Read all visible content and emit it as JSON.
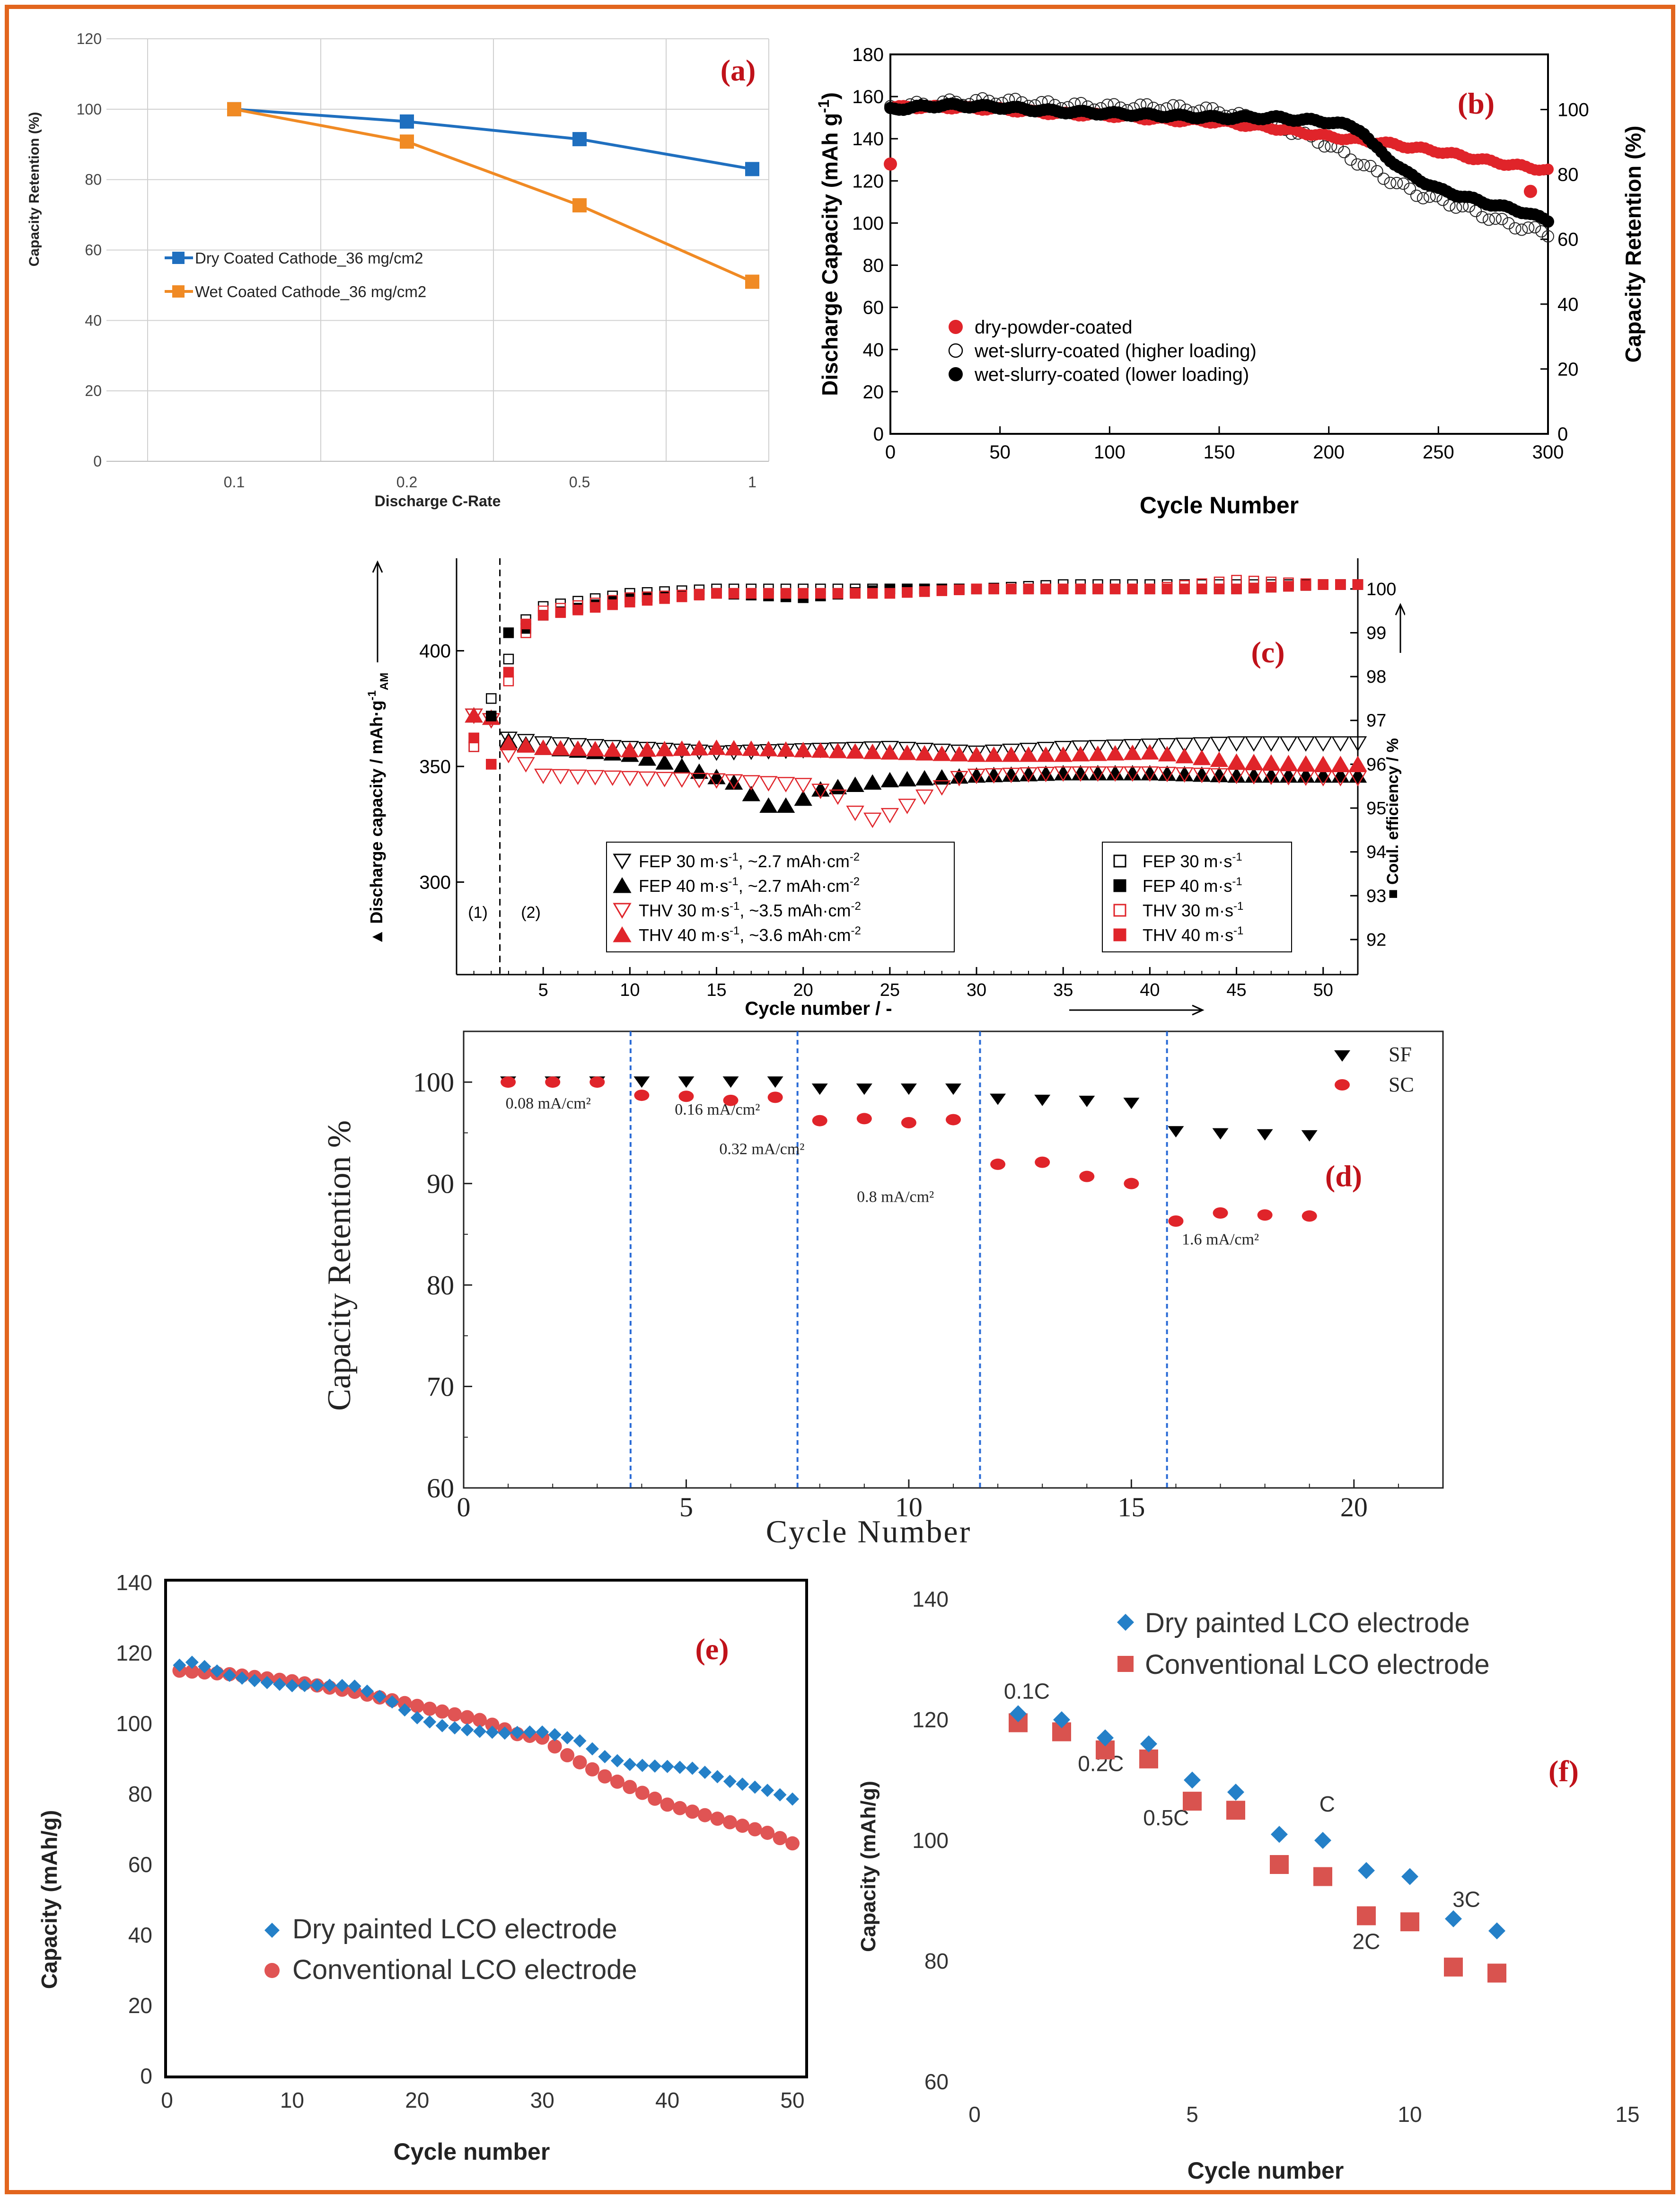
{
  "colors": {
    "border": "#e2651d",
    "blue": "#1f6fbf",
    "orange": "#f08a24",
    "red": "#e0242a",
    "black": "#000000",
    "panel_label": "#c0121a",
    "divider": "#2a6bd6",
    "diamond": "#2480c8",
    "salmon": "#e05454",
    "square_red": "#d9534f"
  },
  "chart_data": [
    {
      "id": "a",
      "type": "line",
      "panel_label": "(a)",
      "xlabel": "Discharge C-Rate",
      "ylabel": "Capacity Retention (%)",
      "categories": [
        "0.1",
        "0.2",
        "0.5",
        "1"
      ],
      "ylim": [
        0,
        120
      ],
      "yticks": [
        "0",
        "20",
        "40",
        "60",
        "80",
        "100",
        "120"
      ],
      "grid": true,
      "series": [
        {
          "name": "Dry Coated Cathode_36 mg/cm2",
          "values": [
            100,
            96.5,
            91.5,
            83.0
          ]
        },
        {
          "name": "Wet Coated Cathode_36 mg/cm2",
          "values": [
            100,
            90.8,
            72.7,
            51.0
          ]
        }
      ]
    },
    {
      "id": "b",
      "type": "scatter",
      "panel_label": "(b)",
      "xlabel": "Cycle Number",
      "ylabel": "Discharge Capacity (mAh g-1)",
      "ylabel_main": "Discharge Capacity (mAh g",
      "ylabel_sup": "-1",
      "ylabel_end": ")",
      "y2label": "Capacity Retention (%)",
      "xlim": [
        0,
        300
      ],
      "ylim": [
        0,
        180
      ],
      "y2lim": [
        0,
        117
      ],
      "xticks": [
        "0",
        "50",
        "100",
        "150",
        "200",
        "250",
        "300"
      ],
      "yticks": [
        "0",
        "20",
        "40",
        "60",
        "80",
        "100",
        "120",
        "140",
        "160",
        "180"
      ],
      "y2ticks": [
        "0",
        "20",
        "40",
        "60",
        "80",
        "100"
      ],
      "series": [
        {
          "name": "dry-powder-coated",
          "x": [
            0,
            25,
            50,
            75,
            100,
            125,
            150,
            175,
            200,
            225,
            250,
            275,
            300
          ],
          "values": [
            155,
            155,
            154,
            152,
            151,
            149,
            148,
            145,
            141,
            138,
            134,
            129,
            125
          ],
          "extra_points": [
            [
              0,
              128
            ],
            [
              292,
              115
            ]
          ]
        },
        {
          "name": "wet-slurry-coated (higher loading)",
          "x": [
            0,
            25,
            50,
            75,
            100,
            125,
            150,
            175,
            200,
            210,
            225,
            240,
            260,
            280,
            300
          ],
          "values": [
            155,
            157,
            158,
            156,
            155,
            155,
            153,
            147,
            137,
            131,
            122,
            114,
            108,
            100,
            95
          ]
        },
        {
          "name": "wet-slurry-coated (lower loading)",
          "x": [
            0,
            25,
            50,
            75,
            100,
            125,
            150,
            175,
            200,
            210,
            215,
            220,
            235,
            250,
            270,
            290,
            300
          ],
          "values": [
            154,
            156,
            155,
            153,
            152,
            151,
            150,
            150,
            148,
            146,
            144,
            137,
            124,
            116,
            110,
            105,
            101
          ]
        }
      ]
    },
    {
      "id": "c",
      "type": "scatter",
      "panel_label": "(c)",
      "xlabel": "Cycle number / -",
      "ylabel_main": "Discharge capacity / mAh·g",
      "ylabel_sub": "AM",
      "ylabel_sup": "-1",
      "ylabel": "Discharge capacity / mAh·g-1AM",
      "y2label": "Coul. efficiency / %",
      "xlim": [
        0,
        52
      ],
      "ylim": [
        260,
        440
      ],
      "y2lim": [
        91.2,
        100.7
      ],
      "xticks": [
        "5",
        "10",
        "15",
        "20",
        "25",
        "30",
        "35",
        "40",
        "45",
        "50"
      ],
      "yticks": [
        "300",
        "350",
        "400"
      ],
      "y2ticks": [
        "92",
        "93",
        "94",
        "95",
        "96",
        "97",
        "98",
        "99",
        "100"
      ],
      "region_labels": [
        "(1)",
        "(2)"
      ],
      "divider_x": 2.5,
      "legend_left_prefix": [
        "FEP 30 m·s",
        "FEP 40 m·s",
        "THV 30 m·s",
        "THV 40 m·s"
      ],
      "legend_left_unit": [
        ", ~2.7 mAh·cm",
        ", ~2.7 mAh·cm",
        ", ~3.5 mAh·cm",
        ", ~3.6 mAh·cm"
      ],
      "legend_right": [
        "FEP 30 m·s",
        "FEP 40 m·s",
        "THV 30 m·s",
        "THV 40 m·s"
      ],
      "sup_neg1": "-1",
      "sup_neg2": "-2",
      "capacity_series": [
        {
          "name": "FEP 30 m·s-1, ~2.7 mAh·cm-2",
          "x": [
            1,
            2,
            3,
            5,
            10,
            15,
            20,
            25,
            30,
            35,
            40,
            45,
            50,
            52
          ],
          "values": [
            372,
            370,
            362,
            360,
            358,
            356,
            357,
            358,
            356,
            358,
            359,
            360,
            360,
            360
          ]
        },
        {
          "name": "FEP 40 m·s-1, ~2.7 mAh·cm-2",
          "x": [
            1,
            2,
            3,
            5,
            10,
            13,
            16,
            18,
            19,
            20,
            21,
            22,
            25,
            30,
            35,
            40,
            45,
            50,
            52
          ],
          "values": [
            372,
            371,
            361,
            358,
            355,
            350,
            343,
            333,
            333,
            336,
            340,
            341,
            344,
            346,
            347,
            347,
            346,
            346,
            346
          ]
        },
        {
          "name": "THV 30 m·s-1, ~3.5 mAh·cm-2",
          "x": [
            1,
            2,
            3,
            4,
            5,
            10,
            15,
            20,
            22,
            23,
            24,
            25,
            27,
            29,
            30,
            35,
            40,
            45,
            50,
            52
          ],
          "values": [
            372,
            370,
            355,
            351,
            346,
            345,
            344,
            342,
            337,
            330,
            327,
            329,
            337,
            345,
            346,
            347,
            347,
            346,
            345,
            345
          ]
        },
        {
          "name": "THV 40 m·s-1, ~3.6 mAh·cm-2",
          "x": [
            1,
            2,
            3,
            5,
            10,
            15,
            20,
            25,
            30,
            35,
            40,
            45,
            50,
            52
          ],
          "values": [
            372,
            371,
            360,
            358,
            357,
            358,
            357,
            356,
            355,
            355,
            356,
            352,
            351,
            351
          ]
        }
      ],
      "efficiency_series": [
        {
          "name": "FEP 30 m·s-1",
          "x": [
            1,
            2,
            3,
            4,
            5,
            10,
            15,
            20,
            25,
            30,
            35,
            40,
            45,
            50,
            52
          ],
          "values": [
            96.4,
            97.5,
            98.4,
            99.3,
            99.6,
            99.9,
            100.0,
            100.0,
            100.0,
            100.0,
            100.1,
            100.1,
            100.1,
            100.1,
            100.1
          ]
        },
        {
          "name": "FEP 40 m·s-1",
          "x": [
            1,
            2,
            3,
            4,
            5,
            10,
            15,
            20,
            25,
            30,
            35,
            40,
            45,
            50,
            52
          ],
          "values": [
            96.6,
            97.1,
            99.0,
            99.1,
            99.4,
            99.8,
            99.9,
            99.8,
            100.0,
            100.0,
            100.0,
            100.0,
            100.0,
            100.1,
            100.1
          ]
        },
        {
          "name": "THV 30 m·s-1",
          "x": [
            1,
            2,
            3,
            4,
            5,
            10,
            15,
            20,
            25,
            30,
            35,
            40,
            45,
            50,
            52
          ],
          "values": [
            96.4,
            96.0,
            97.9,
            99.0,
            99.5,
            99.8,
            99.9,
            99.9,
            99.9,
            100.0,
            100.0,
            100.0,
            100.2,
            100.1,
            100.1
          ]
        },
        {
          "name": "THV 40 m·s-1",
          "x": [
            1,
            2,
            3,
            4,
            5,
            10,
            15,
            20,
            25,
            30,
            35,
            40,
            45,
            50,
            52
          ],
          "values": [
            96.6,
            96.0,
            98.1,
            99.2,
            99.4,
            99.7,
            99.9,
            99.9,
            99.9,
            100.0,
            100.0,
            100.0,
            100.0,
            100.1,
            100.1
          ]
        }
      ]
    },
    {
      "id": "d",
      "type": "scatter",
      "panel_label": "(d)",
      "xlabel": "Cycle Number",
      "ylabel": "Capacity Retention %",
      "xlim": [
        0,
        22
      ],
      "ylim": [
        60,
        105
      ],
      "xticks": [
        "0",
        "5",
        "10",
        "15",
        "20"
      ],
      "yticks": [
        "60",
        "70",
        "80",
        "90",
        "100"
      ],
      "dividers": [
        3.75,
        7.5,
        11.6,
        15.8
      ],
      "rate_labels": [
        "0.08 mA/cm²",
        "0.16 mA/cm²",
        "0.32 mA/cm²",
        "0.8 mA/cm²",
        "1.6 mA/cm²"
      ],
      "series": [
        {
          "name": "SF",
          "x": [
            1,
            2,
            3,
            4,
            5,
            6,
            7,
            8,
            9,
            10,
            11,
            12,
            13,
            14,
            15,
            16,
            17,
            18,
            19
          ],
          "values": [
            100,
            100,
            100,
            100,
            100,
            100,
            100,
            99.3,
            99.3,
            99.3,
            99.3,
            98.3,
            98.2,
            98.1,
            97.9,
            95.1,
            94.9,
            94.8,
            94.7
          ]
        },
        {
          "name": "SC",
          "x": [
            1,
            2,
            3,
            4,
            5,
            6,
            7,
            8,
            9,
            10,
            11,
            12,
            13,
            14,
            15,
            16,
            17,
            18,
            19
          ],
          "values": [
            100,
            100,
            100,
            98.7,
            98.6,
            98.2,
            98.5,
            96.2,
            96.4,
            96.0,
            96.3,
            91.9,
            92.1,
            90.7,
            90.0,
            86.3,
            87.1,
            86.9,
            86.8
          ]
        }
      ]
    },
    {
      "id": "e",
      "type": "scatter",
      "panel_label": "(e)",
      "xlabel": "Cycle number",
      "ylabel": "Capacity (mAh/g)",
      "xlim": [
        0,
        50
      ],
      "ylim": [
        0,
        140
      ],
      "xticks": [
        "0",
        "10",
        "20",
        "30",
        "40",
        "50"
      ],
      "yticks": [
        "0",
        "20",
        "40",
        "60",
        "80",
        "100",
        "120",
        "140"
      ],
      "series": [
        {
          "name": "Dry painted LCO electrode",
          "x": [
            1,
            2,
            5,
            10,
            15,
            18,
            20,
            22,
            25,
            27,
            30,
            33,
            35,
            37,
            40,
            42,
            45,
            48,
            50
          ],
          "values": [
            116,
            117,
            114,
            111,
            110,
            106,
            102,
            100,
            98,
            97,
            97,
            95,
            91,
            89,
            88,
            87,
            83,
            81,
            79
          ]
        },
        {
          "name": "Conventional LCO electrode",
          "x": [
            1,
            5,
            10,
            15,
            20,
            25,
            28,
            30,
            32,
            35,
            37,
            40,
            42,
            45,
            48,
            50
          ],
          "values": [
            115,
            114,
            112,
            109,
            105,
            101,
            97,
            96,
            91,
            85,
            82,
            77,
            75,
            72,
            69,
            66
          ]
        }
      ]
    },
    {
      "id": "f",
      "type": "scatter",
      "panel_label": "(f)",
      "xlabel": "Cycle number",
      "ylabel": "Capacity (mAh/g)",
      "xlim": [
        0,
        15
      ],
      "ylim": [
        60,
        140
      ],
      "xticks": [
        "0",
        "5",
        "10",
        "15"
      ],
      "yticks": [
        "60",
        "80",
        "100",
        "120",
        "140"
      ],
      "rate_labels": [
        "0.1C",
        "0.2C",
        "0.5C",
        "C",
        "2C",
        "3C"
      ],
      "series": [
        {
          "name": "Dry painted LCO electrode",
          "x": [
            1,
            2,
            3,
            4,
            5,
            6,
            7,
            8,
            9,
            10,
            11,
            12
          ],
          "values": [
            121,
            120,
            117,
            116,
            110,
            108,
            101,
            100,
            95,
            94,
            87,
            85
          ]
        },
        {
          "name": "Conventional LCO electrode",
          "x": [
            1,
            2,
            3,
            4,
            5,
            6,
            7,
            8,
            9,
            10,
            11,
            12
          ],
          "values": [
            119.5,
            118,
            115,
            113.5,
            106.5,
            105,
            96,
            94,
            87.5,
            86.5,
            79,
            78
          ]
        }
      ]
    }
  ]
}
